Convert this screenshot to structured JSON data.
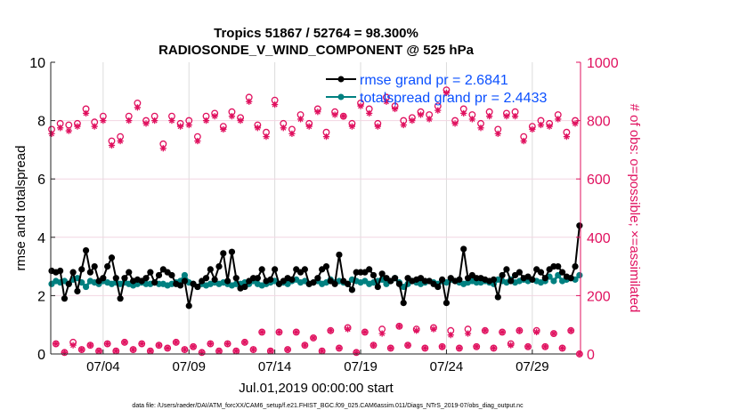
{
  "chart_data": {
    "type": "line",
    "title": [
      "Tropics 51867 / 52764 = 98.300%",
      "RADIOSONDE_V_WIND_COMPONENT @ 525 hPa"
    ],
    "xlabel": "Jul.01,2019 00:00:00 start",
    "ylabel": "rmse and totalspread",
    "ylabel_right": "# of obs: o=possible; ×=assimilated",
    "footer": "data file: /Users/raeder/DAI/ATM_forcXX/CAM6_setup/f.e21.FHIST_BGC.f09_025.CAM6assim.011/Diags_NTrS_2019-07/obs_diag_output.nc",
    "x_ticks": [
      "07/04",
      "07/09",
      "07/14",
      "07/19",
      "07/24",
      "07/29"
    ],
    "ylim": [
      0,
      10
    ],
    "y_ticks": [
      "0",
      "2",
      "4",
      "6",
      "8",
      "10"
    ],
    "ylim_right": [
      0,
      1000
    ],
    "y_ticks_right": [
      "0",
      "200",
      "400",
      "600",
      "800",
      "1000"
    ],
    "grid": true,
    "legend_position": "top-right",
    "colors": {
      "rmse": "#000000",
      "totalspread": "#008080",
      "obs": "#e0115f",
      "legend_text": "#0b50ff"
    },
    "series": [
      {
        "name": "rmse grand pr = 2.6841",
        "axis": "left",
        "values": [
          2.85,
          2.8,
          2.85,
          1.9,
          2.4,
          2.8,
          2.15,
          2.9,
          3.55,
          2.8,
          3.0,
          2.5,
          2.6,
          3.0,
          3.3,
          2.6,
          1.9,
          2.6,
          2.8,
          2.5,
          2.55,
          2.5,
          2.6,
          2.8,
          2.45,
          2.7,
          2.9,
          2.8,
          2.7,
          2.4,
          2.35,
          2.5,
          1.65,
          2.4,
          2.3,
          2.5,
          2.6,
          2.9,
          2.55,
          3.0,
          3.45,
          2.5,
          3.5,
          2.6,
          2.25,
          2.3,
          2.5,
          2.6,
          2.6,
          2.9,
          2.5,
          2.55,
          2.9,
          2.4,
          2.5,
          2.6,
          2.55,
          2.9,
          2.8,
          2.9,
          2.4,
          2.45,
          2.6,
          2.9,
          3.0,
          2.5,
          2.4,
          3.4,
          2.5,
          2.4,
          2.2,
          2.8,
          2.8,
          2.8,
          2.9,
          2.7,
          2.3,
          2.75,
          2.6,
          2.5,
          2.6,
          2.4,
          1.75,
          2.6,
          2.5,
          2.55,
          2.6,
          2.5,
          2.5,
          2.4,
          2.3,
          2.55,
          1.75,
          2.6,
          2.5,
          2.55,
          3.6,
          2.6,
          2.7,
          2.6,
          2.6,
          2.55,
          2.5,
          2.55,
          1.95,
          2.7,
          2.9,
          2.5,
          2.7,
          2.8,
          2.6,
          2.65,
          2.55,
          2.9,
          2.8,
          2.6,
          2.9,
          3.0,
          3.0,
          2.8,
          2.65,
          2.6,
          3.0,
          4.4
        ]
      },
      {
        "name": "totalspread grand pr = 2.4433",
        "axis": "left",
        "values": [
          2.4,
          2.5,
          2.45,
          2.5,
          2.4,
          2.55,
          2.6,
          2.45,
          2.3,
          2.5,
          2.45,
          2.4,
          2.5,
          2.45,
          2.4,
          2.45,
          2.4,
          2.45,
          2.4,
          2.35,
          2.4,
          2.45,
          2.4,
          2.4,
          2.45,
          2.4,
          2.4,
          2.35,
          2.4,
          2.45,
          2.5,
          2.7,
          2.45,
          2.4,
          2.3,
          2.4,
          2.35,
          2.4,
          2.45,
          2.4,
          2.45,
          2.4,
          2.35,
          2.4,
          2.4,
          2.45,
          2.4,
          2.5,
          2.4,
          2.35,
          2.4,
          2.45,
          2.5,
          2.4,
          2.45,
          2.4,
          2.5,
          2.55,
          2.45,
          2.5,
          2.4,
          2.45,
          2.5,
          2.4,
          2.45,
          2.55,
          2.45,
          2.5,
          2.45,
          2.4,
          2.55,
          2.5,
          2.45,
          2.5,
          2.4,
          2.45,
          2.5,
          2.55,
          2.4,
          2.5,
          2.6,
          2.45,
          2.3,
          2.4,
          2.5,
          2.45,
          2.4,
          2.45,
          2.5,
          2.45,
          2.4,
          2.5,
          2.45,
          2.55,
          2.5,
          2.45,
          2.4,
          2.45,
          2.5,
          2.45,
          2.45,
          2.5,
          2.45,
          2.4,
          2.55,
          2.5,
          2.45,
          2.55,
          2.45,
          2.5,
          2.55,
          2.5,
          2.55,
          2.5,
          2.45,
          2.5,
          2.65,
          2.5,
          2.7,
          2.5,
          2.55,
          2.6,
          2.55,
          2.7
        ]
      },
      {
        "name": "possible",
        "axis": "right",
        "marker": "o",
        "values": [
          770,
          35,
          790,
          5,
          785,
          40,
          790,
          15,
          840,
          30,
          795,
          10,
          815,
          35,
          730,
          10,
          745,
          40,
          815,
          15,
          860,
          35,
          800,
          10,
          815,
          30,
          720,
          20,
          815,
          40,
          790,
          15,
          800,
          25,
          745,
          5,
          815,
          35,
          825,
          10,
          780,
          35,
          830,
          10,
          810,
          40,
          880,
          15,
          785,
          75,
          760,
          10,
          870,
          75,
          790,
          15,
          770,
          75,
          820,
          30,
          790,
          55,
          840,
          10,
          760,
          80,
          830,
          20,
          815,
          90,
          790,
          5,
          860,
          75,
          840,
          30,
          790,
          85,
          880,
          20,
          850,
          95,
          800,
          30,
          810,
          85,
          830,
          20,
          820,
          90,
          850,
          25,
          905,
          80,
          800,
          20,
          840,
          85,
          820,
          25,
          790,
          80,
          830,
          20,
          770,
          75,
          825,
          35,
          830,
          80,
          745,
          25,
          780,
          80,
          800,
          25,
          790,
          70,
          820,
          20,
          760,
          80,
          800,
          0
        ]
      },
      {
        "name": "assimilated",
        "axis": "right",
        "marker": "*",
        "values": [
          755,
          35,
          775,
          5,
          765,
          30,
          780,
          15,
          825,
          30,
          780,
          10,
          800,
          35,
          715,
          10,
          730,
          40,
          800,
          15,
          845,
          35,
          790,
          10,
          800,
          30,
          705,
          20,
          800,
          40,
          780,
          15,
          785,
          25,
          730,
          5,
          800,
          35,
          815,
          10,
          770,
          35,
          815,
          10,
          800,
          40,
          865,
          15,
          775,
          75,
          745,
          10,
          855,
          75,
          775,
          15,
          755,
          75,
          805,
          30,
          780,
          55,
          830,
          10,
          745,
          80,
          820,
          20,
          815,
          85,
          780,
          5,
          850,
          75,
          825,
          30,
          780,
          70,
          865,
          20,
          840,
          95,
          785,
          30,
          800,
          80,
          820,
          20,
          805,
          85,
          835,
          25,
          895,
          65,
          790,
          20,
          825,
          70,
          805,
          25,
          775,
          80,
          815,
          20,
          755,
          75,
          815,
          30,
          815,
          80,
          730,
          25,
          770,
          75,
          785,
          25,
          780,
          70,
          805,
          20,
          745,
          80,
          790,
          0
        ]
      }
    ]
  }
}
